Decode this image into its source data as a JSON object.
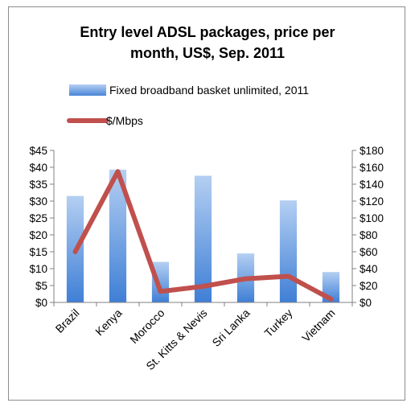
{
  "chart_data": {
    "type": "bar",
    "title_lines": [
      "Entry level ADSL packages, price per",
      "month, US$, Sep. 2011"
    ],
    "categories": [
      "Brazil",
      "Kenya",
      "Morocco",
      "St. Kitts & Nevis",
      "Sri Lanka",
      "Turkey",
      "Vietnam"
    ],
    "series": [
      {
        "name": "Fixed broadband basket unlimited, 2011",
        "type": "bar",
        "axis": "left",
        "values": [
          31.5,
          39.3,
          12,
          37.5,
          14.5,
          30.2,
          9
        ],
        "color": "#4a86d8"
      },
      {
        "name": "$/Mbps",
        "type": "line",
        "axis": "right",
        "values": [
          60,
          155,
          13,
          19,
          28,
          31,
          4
        ],
        "color": "#c0504d"
      }
    ],
    "y_left": {
      "ylim": [
        0,
        45
      ],
      "ticks": [
        0,
        5,
        10,
        15,
        20,
        25,
        30,
        35,
        40,
        45
      ],
      "tick_labels": [
        "$0",
        "$5",
        "$10",
        "$15",
        "$20",
        "$25",
        "$30",
        "$35",
        "$40",
        "$45"
      ]
    },
    "y_right": {
      "ylim": [
        0,
        180
      ],
      "ticks": [
        0,
        20,
        40,
        60,
        80,
        100,
        120,
        140,
        160,
        180
      ],
      "tick_labels": [
        "$0",
        "$20",
        "$40",
        "$60",
        "$80",
        "$100",
        "$120",
        "$140",
        "$160",
        "$180"
      ]
    },
    "grid": false,
    "legend_position": "top"
  }
}
